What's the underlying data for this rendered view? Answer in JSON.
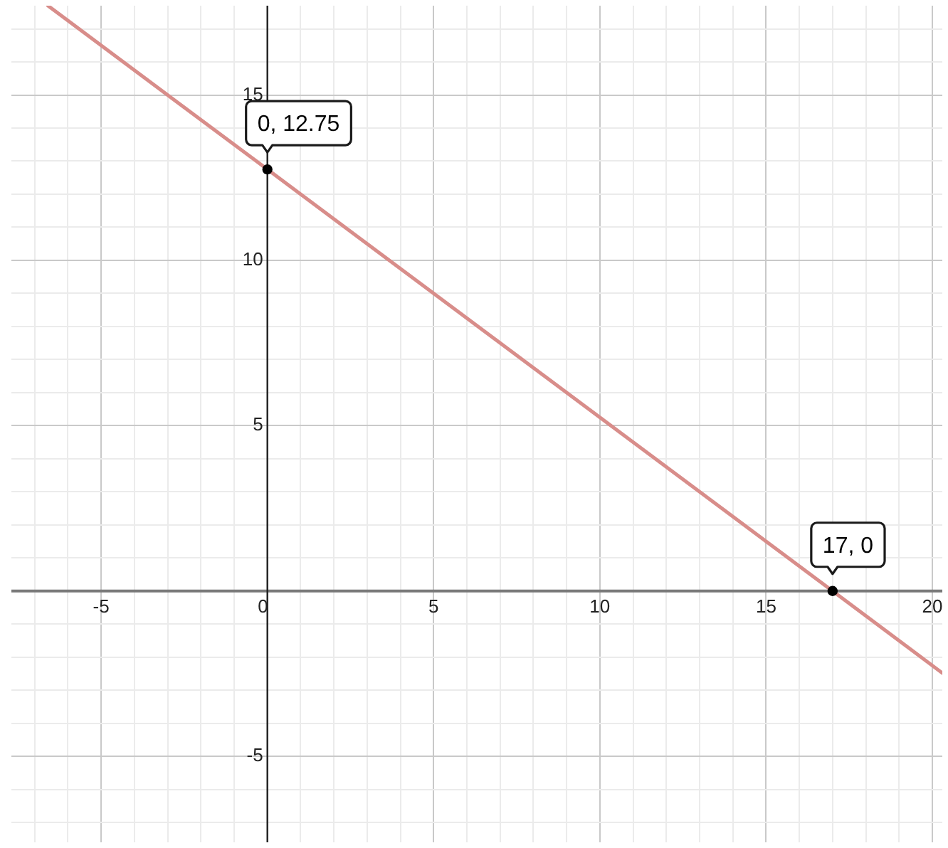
{
  "chart_data": {
    "type": "line",
    "xlim": [
      -7.7,
      20.3
    ],
    "ylim": [
      -7.6,
      17.7
    ],
    "xticks": [
      {
        "value": -7,
        "label": null
      },
      {
        "value": -6,
        "label": null
      },
      -5,
      {
        "value": -4,
        "label": null
      },
      {
        "value": -3,
        "label": null
      },
      {
        "value": -2,
        "label": null
      },
      {
        "value": -1,
        "label": null
      },
      0,
      {
        "value": 1,
        "label": null
      },
      {
        "value": 2,
        "label": null
      },
      {
        "value": 3,
        "label": null
      },
      {
        "value": 4,
        "label": null
      },
      5,
      {
        "value": 6,
        "label": null
      },
      {
        "value": 7,
        "label": null
      },
      {
        "value": 8,
        "label": null
      },
      {
        "value": 9,
        "label": null
      },
      10,
      {
        "value": 11,
        "label": null
      },
      {
        "value": 12,
        "label": null
      },
      {
        "value": 13,
        "label": null
      },
      {
        "value": 14,
        "label": null
      },
      15,
      {
        "value": 16,
        "label": null
      },
      {
        "value": 17,
        "label": null
      },
      {
        "value": 18,
        "label": null
      },
      {
        "value": 19,
        "label": null
      },
      20
    ],
    "yticks": [
      {
        "value": -7,
        "label": null
      },
      {
        "value": -6,
        "label": null
      },
      -5,
      {
        "value": -4,
        "label": null
      },
      {
        "value": -3,
        "label": null
      },
      {
        "value": -2,
        "label": null
      },
      {
        "value": -1,
        "label": null
      },
      {
        "value": 0,
        "label": null
      },
      {
        "value": 1,
        "label": null
      },
      {
        "value": 2,
        "label": null
      },
      {
        "value": 3,
        "label": null
      },
      {
        "value": 4,
        "label": null
      },
      5,
      {
        "value": 6,
        "label": null
      },
      {
        "value": 7,
        "label": null
      },
      {
        "value": 8,
        "label": null
      },
      {
        "value": 9,
        "label": null
      },
      10,
      {
        "value": 11,
        "label": null
      },
      {
        "value": 12,
        "label": null
      },
      {
        "value": 13,
        "label": null
      },
      {
        "value": 14,
        "label": null
      },
      15,
      {
        "value": 16,
        "label": null
      },
      {
        "value": 17,
        "label": null
      }
    ],
    "grid": true,
    "series": [
      {
        "type": "line",
        "color": "#d88d8a",
        "x": [
          -6.6,
          0,
          17,
          20.3
        ],
        "values": [
          17.7,
          12.75,
          0,
          -2.48
        ],
        "marker": "none"
      },
      {
        "type": "scatter",
        "color": "#000000",
        "x": [
          0,
          17
        ],
        "values": [
          12.75,
          0
        ],
        "marker": "circle"
      }
    ],
    "annotations": [
      {
        "text": "0, 12.75",
        "x": 0,
        "y": 12.75
      },
      {
        "text": "17, 0",
        "x": 17,
        "y": 0
      }
    ]
  }
}
